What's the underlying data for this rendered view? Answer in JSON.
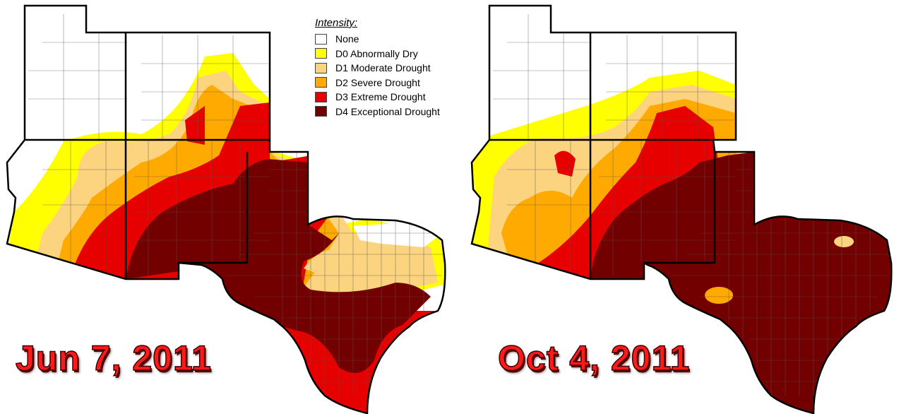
{
  "legend": {
    "title": "Intensity:",
    "items": [
      {
        "label": "None",
        "color": "#ffffff"
      },
      {
        "label": "D0 Abnormally Dry",
        "color": "#ffff00"
      },
      {
        "label": "D1 Moderate Drought",
        "color": "#fcd37f"
      },
      {
        "label": "D2 Severe Drought",
        "color": "#ffaa00"
      },
      {
        "label": "D3 Extreme Drought",
        "color": "#e60000"
      },
      {
        "label": "D4 Exceptional Drought",
        "color": "#730000"
      }
    ]
  },
  "maps": [
    {
      "date": "Jun 7, 2011"
    },
    {
      "date": "Oct 4, 2011"
    }
  ]
}
